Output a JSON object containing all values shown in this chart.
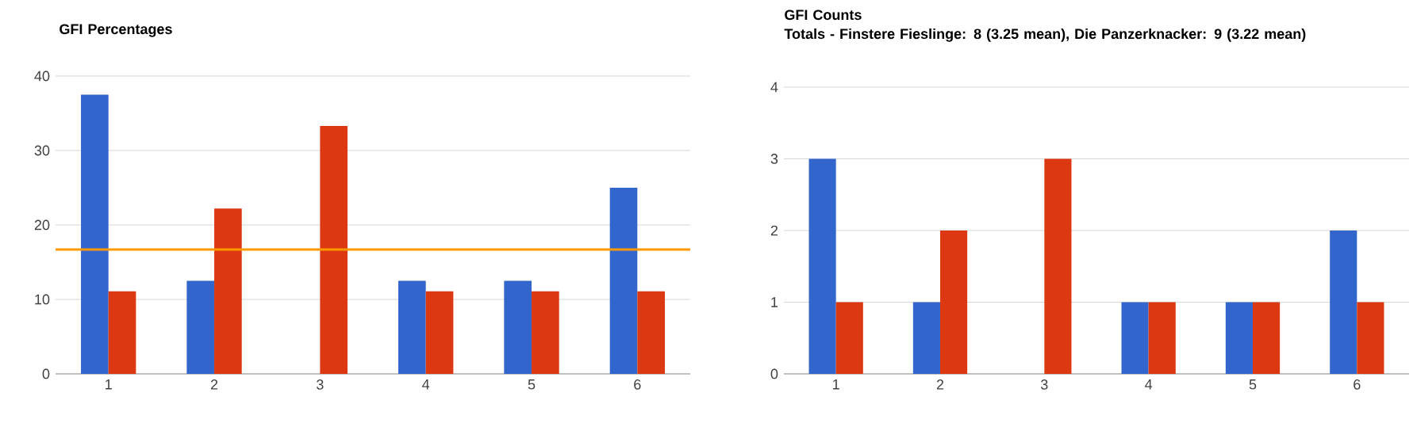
{
  "chart_data": [
    {
      "type": "bar",
      "title": "GFI Percentages",
      "categories": [
        "1",
        "2",
        "3",
        "4",
        "5",
        "6"
      ],
      "series": [
        {
          "color": "#3366cc",
          "values": [
            37.5,
            12.5,
            0,
            12.5,
            12.5,
            25
          ]
        },
        {
          "color": "#dc3912",
          "values": [
            11.1,
            22.2,
            33.3,
            11.1,
            11.1,
            11.1
          ]
        }
      ],
      "ylim": [
        0,
        40
      ],
      "yticks": [
        0,
        10,
        20,
        30,
        40
      ],
      "grid": "y",
      "ref_lines": [
        {
          "axis": "y",
          "value": 16.7,
          "color": "#ff9900"
        }
      ]
    },
    {
      "type": "bar",
      "title": "GFI Counts",
      "subtitle": "Totals - Finstere Fieslinge: 8 (3.25 mean), Die Panzerknacker: 9 (3.22 mean)",
      "categories": [
        "1",
        "2",
        "3",
        "4",
        "5",
        "6"
      ],
      "series": [
        {
          "color": "#3366cc",
          "values": [
            3,
            1,
            0,
            1,
            1,
            2
          ]
        },
        {
          "color": "#dc3912",
          "values": [
            1,
            2,
            3,
            1,
            1,
            1
          ]
        }
      ],
      "ylim": [
        0,
        4
      ],
      "yticks": [
        0,
        1,
        2,
        3,
        4
      ],
      "grid": "y"
    }
  ]
}
